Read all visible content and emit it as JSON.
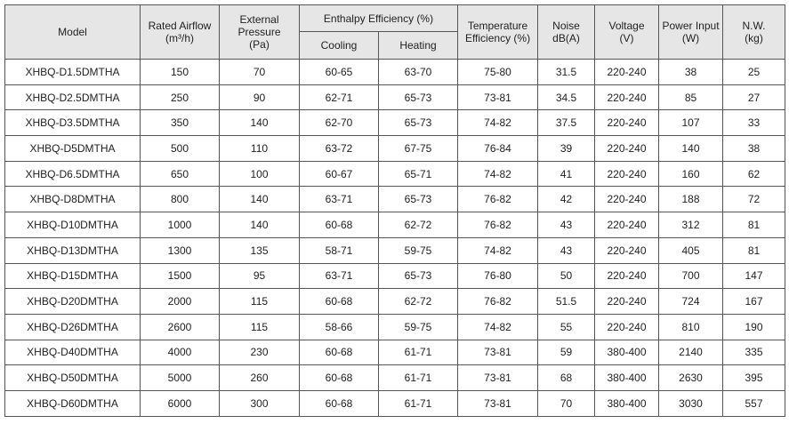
{
  "table": {
    "header": {
      "model": "Model",
      "airflow": [
        "Rated Airflow",
        "(m³/h)"
      ],
      "pressure": [
        "External",
        "Pressure",
        "(Pa)"
      ],
      "enthalpy": "Enthalpy Efficiency (%)",
      "cooling": "Cooling",
      "heating": "Heating",
      "temperature": [
        "Temperature",
        "Efficiency (%)"
      ],
      "noise": [
        "Noise",
        "dB(A)"
      ],
      "voltage": [
        "Voltage",
        "(V)"
      ],
      "power": [
        "Power Input",
        "(W)"
      ],
      "weight": [
        "N.W.",
        "(kg)"
      ]
    },
    "rows": [
      [
        "XHBQ-D1.5DMTHA",
        150,
        70,
        "60-65",
        "63-70",
        "75-80",
        31.5,
        "220-240",
        38,
        25
      ],
      [
        "XHBQ-D2.5DMTHA",
        250,
        90,
        "62-71",
        "65-73",
        "73-81",
        34.5,
        "220-240",
        85,
        27
      ],
      [
        "XHBQ-D3.5DMTHA",
        350,
        140,
        "62-70",
        "65-73",
        "74-82",
        37.5,
        "220-240",
        107,
        33
      ],
      [
        "XHBQ-D5DMTHA",
        500,
        110,
        "63-72",
        "67-75",
        "76-84",
        39,
        "220-240",
        140,
        38
      ],
      [
        "XHBQ-D6.5DMTHA",
        650,
        100,
        "60-67",
        "65-71",
        "74-82",
        41,
        "220-240",
        160,
        62
      ],
      [
        "XHBQ-D8DMTHA",
        800,
        140,
        "63-71",
        "65-73",
        "76-82",
        42,
        "220-240",
        188,
        72
      ],
      [
        "XHBQ-D10DMTHA",
        1000,
        140,
        "60-68",
        "62-72",
        "76-82",
        43,
        "220-240",
        312,
        81
      ],
      [
        "XHBQ-D13DMTHA",
        1300,
        135,
        "58-71",
        "59-75",
        "74-82",
        43,
        "220-240",
        405,
        81
      ],
      [
        "XHBQ-D15DMTHA",
        1500,
        95,
        "63-71",
        "65-73",
        "76-80",
        50,
        "220-240",
        700,
        147
      ],
      [
        "XHBQ-D20DMTHA",
        2000,
        115,
        "60-68",
        "62-72",
        "76-82",
        51.5,
        "220-240",
        724,
        167
      ],
      [
        "XHBQ-D26DMTHA",
        2600,
        115,
        "58-66",
        "59-75",
        "74-82",
        55,
        "220-240",
        810,
        190
      ],
      [
        "XHBQ-D40DMTHA",
        4000,
        230,
        "60-68",
        "61-71",
        "73-81",
        59,
        "380-400",
        2140,
        335
      ],
      [
        "XHBQ-D50DMTHA",
        5000,
        260,
        "60-68",
        "61-71",
        "73-81",
        68,
        "380-400",
        2630,
        395
      ],
      [
        "XHBQ-D60DMTHA",
        6000,
        300,
        "60-68",
        "61-71",
        "73-81",
        70,
        "380-400",
        3030,
        557
      ]
    ]
  }
}
